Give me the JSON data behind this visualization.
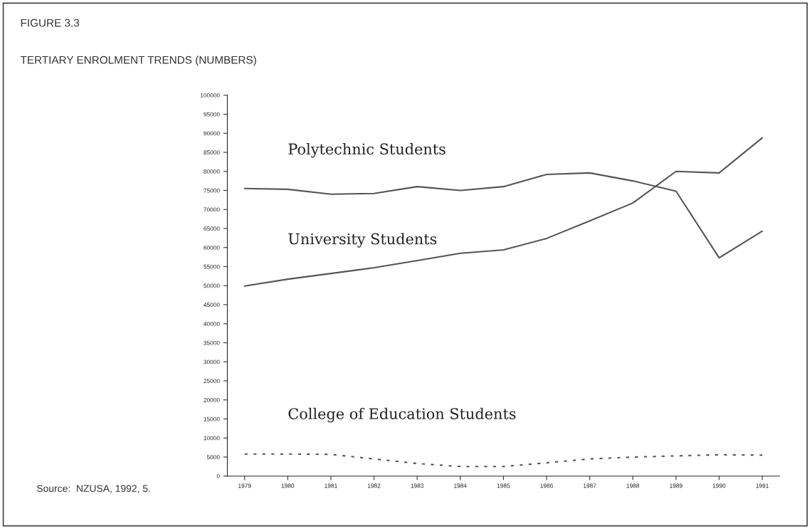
{
  "chart_data": {
    "type": "line",
    "title": "FIGURE 3.3",
    "subtitle": "TERTIARY ENROLMENT TRENDS (NUMBERS)",
    "categories": [
      "1979",
      "1980",
      "1981",
      "1982",
      "1983",
      "1984",
      "1985",
      "1986",
      "1987",
      "1988",
      "1989",
      "1990",
      "1991"
    ],
    "series": [
      {
        "name": "Polytechnic Students",
        "color": "#555555",
        "line_style": "solid",
        "values": [
          75500,
          75300,
          74000,
          74200,
          76000,
          75000,
          76000,
          79200,
          79600,
          77500,
          74800,
          57300,
          64300
        ]
      },
      {
        "name": "University Students",
        "color": "#555555",
        "line_style": "solid",
        "values": [
          49900,
          51700,
          53200,
          54700,
          56600,
          58500,
          59400,
          62400,
          67000,
          71700,
          80000,
          79600,
          88800
        ]
      },
      {
        "name": "College of Education Students",
        "color": "#555555",
        "line_style": "dashed",
        "values": [
          5800,
          5800,
          5700,
          4500,
          3300,
          2500,
          2500,
          3500,
          4500,
          5000,
          5300,
          5600,
          5500
        ]
      }
    ],
    "ylim": [
      0,
      100000
    ],
    "yticks": [
      0,
      5000,
      10000,
      15000,
      20000,
      25000,
      30000,
      35000,
      40000,
      45000,
      50000,
      55000,
      60000,
      65000,
      70000,
      75000,
      80000,
      85000,
      90000,
      95000,
      100000
    ],
    "grid": false,
    "legend": false,
    "marker": "none",
    "annotations": [
      "Source:  NZUSA, 1992, 5."
    ]
  }
}
